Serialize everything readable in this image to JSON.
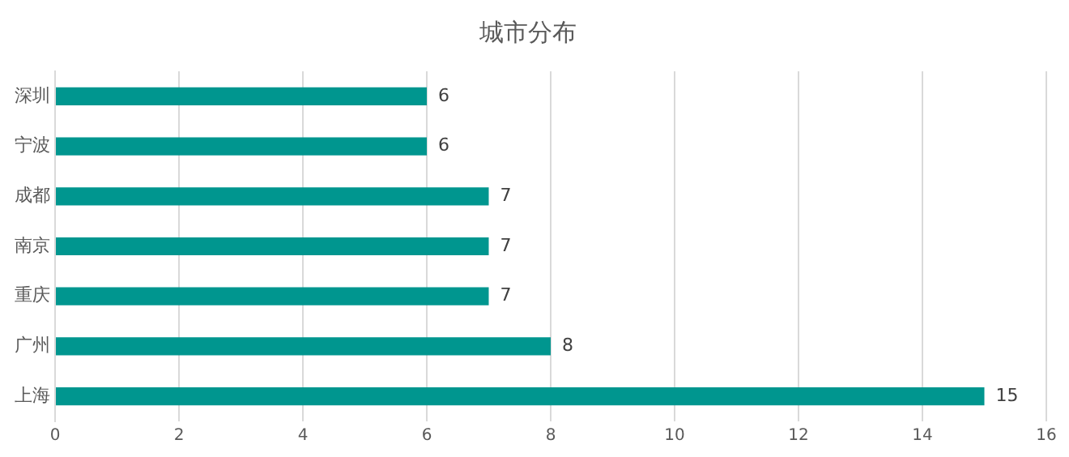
{
  "chart_data": {
    "type": "bar",
    "orientation": "horizontal",
    "title": "城市分布",
    "categories": [
      "深圳",
      "宁波",
      "成都",
      "南京",
      "重庆",
      "广州",
      "上海"
    ],
    "values": [
      6,
      6,
      7,
      7,
      7,
      8,
      15
    ],
    "color": "#00968f",
    "xlim": [
      0,
      16
    ],
    "xticks": [
      0,
      2,
      4,
      6,
      8,
      10,
      12,
      14,
      16
    ],
    "grid": "x",
    "data_labels": true,
    "legend": false
  }
}
